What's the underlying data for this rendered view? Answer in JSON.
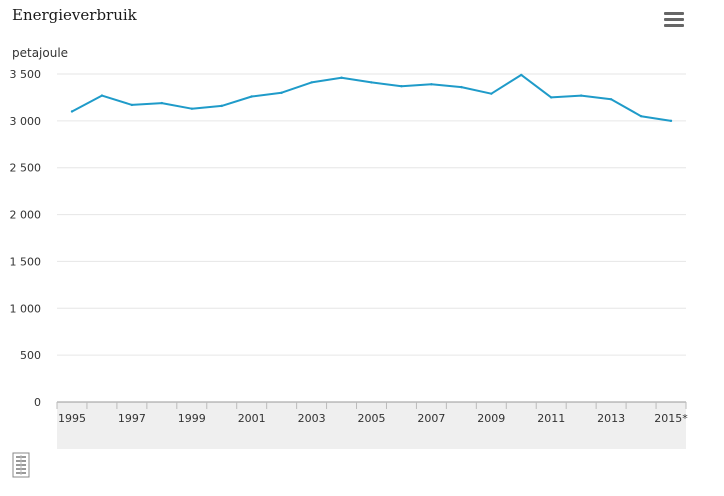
{
  "title": "Energieverbruik",
  "icons": {
    "menu": "hamburger-menu-icon",
    "logo": "cbs-logo-icon"
  },
  "colors": {
    "line": "#1f9bc9",
    "grid": "#e6e6e6",
    "band": "#efefef",
    "axis": "#999999"
  },
  "chart_data": {
    "type": "line",
    "title": "Energieverbruik",
    "ylabel": "petajoule",
    "xlabel": "",
    "ylim": [
      0,
      3500
    ],
    "yticks": [
      0,
      500,
      1000,
      1500,
      2000,
      2500,
      3000,
      3500
    ],
    "ytick_labels": [
      "0",
      "500",
      "1 000",
      "1 500",
      "2 000",
      "2 500",
      "3 000",
      "3 500"
    ],
    "categories": [
      "1995",
      "1996",
      "1997",
      "1998",
      "1999",
      "2000",
      "2001",
      "2002",
      "2003",
      "2004",
      "2005",
      "2006",
      "2007",
      "2008",
      "2009",
      "2010",
      "2011",
      "2012",
      "2013",
      "2014",
      "2015*"
    ],
    "xtick_labels": [
      "1995",
      "",
      "1997",
      "",
      "1999",
      "",
      "2001",
      "",
      "2003",
      "",
      "2005",
      "",
      "2007",
      "",
      "2009",
      "",
      "2011",
      "",
      "2013",
      "",
      "2015*"
    ],
    "series": [
      {
        "values": [
          3100,
          3270,
          3170,
          3190,
          3130,
          3160,
          3260,
          3300,
          3410,
          3460,
          3410,
          3370,
          3390,
          3360,
          3290,
          3490,
          3250,
          3270,
          3230,
          3050,
          3000
        ]
      }
    ],
    "grid": true,
    "legend": "none"
  }
}
